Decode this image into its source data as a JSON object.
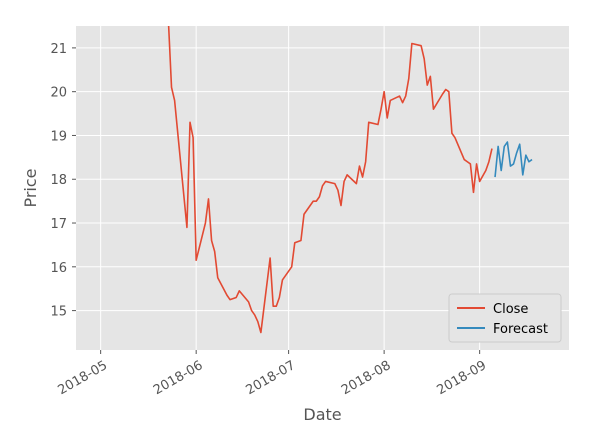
{
  "chart_data": {
    "type": "line",
    "title": "",
    "xlabel": "Date",
    "ylabel": "Price",
    "x_type": "date",
    "xlim": [
      "2018-04-23",
      "2018-09-30"
    ],
    "ylim": [
      14.1,
      21.5
    ],
    "x_ticks": [
      "2018-05-01",
      "2018-06-01",
      "2018-07-01",
      "2018-08-01",
      "2018-09-01"
    ],
    "x_tick_labels": [
      "2018-05",
      "2018-06",
      "2018-07",
      "2018-08",
      "2018-09"
    ],
    "y_ticks": [
      15,
      16,
      17,
      18,
      19,
      20,
      21
    ],
    "y_tick_labels": [
      "15",
      "16",
      "17",
      "18",
      "19",
      "20",
      "21"
    ],
    "grid": true,
    "legend_position": "lower-right",
    "series": [
      {
        "name": "Close",
        "color": "#e24a33",
        "points": [
          [
            "2018-05-23",
            21.6
          ],
          [
            "2018-05-24",
            20.1
          ],
          [
            "2018-05-25",
            19.8
          ],
          [
            "2018-05-29",
            16.9
          ],
          [
            "2018-05-30",
            19.3
          ],
          [
            "2018-05-31",
            18.95
          ],
          [
            "2018-06-01",
            16.15
          ],
          [
            "2018-06-04",
            17.0
          ],
          [
            "2018-06-05",
            17.55
          ],
          [
            "2018-06-06",
            16.6
          ],
          [
            "2018-06-07",
            16.35
          ],
          [
            "2018-06-08",
            15.75
          ],
          [
            "2018-06-11",
            15.35
          ],
          [
            "2018-06-12",
            15.25
          ],
          [
            "2018-06-14",
            15.3
          ],
          [
            "2018-06-15",
            15.45
          ],
          [
            "2018-06-18",
            15.2
          ],
          [
            "2018-06-19",
            15.0
          ],
          [
            "2018-06-20",
            14.9
          ],
          [
            "2018-06-21",
            14.75
          ],
          [
            "2018-06-22",
            14.5
          ],
          [
            "2018-06-25",
            16.2
          ],
          [
            "2018-06-26",
            15.1
          ],
          [
            "2018-06-27",
            15.1
          ],
          [
            "2018-06-28",
            15.3
          ],
          [
            "2018-06-29",
            15.7
          ],
          [
            "2018-07-02",
            16.0
          ],
          [
            "2018-07-03",
            16.55
          ],
          [
            "2018-07-05",
            16.6
          ],
          [
            "2018-07-06",
            17.2
          ],
          [
            "2018-07-09",
            17.5
          ],
          [
            "2018-07-10",
            17.5
          ],
          [
            "2018-07-11",
            17.6
          ],
          [
            "2018-07-12",
            17.85
          ],
          [
            "2018-07-13",
            17.95
          ],
          [
            "2018-07-16",
            17.9
          ],
          [
            "2018-07-17",
            17.75
          ],
          [
            "2018-07-18",
            17.4
          ],
          [
            "2018-07-19",
            17.95
          ],
          [
            "2018-07-20",
            18.1
          ],
          [
            "2018-07-23",
            17.9
          ],
          [
            "2018-07-24",
            18.3
          ],
          [
            "2018-07-25",
            18.05
          ],
          [
            "2018-07-26",
            18.4
          ],
          [
            "2018-07-27",
            19.3
          ],
          [
            "2018-07-30",
            19.25
          ],
          [
            "2018-07-31",
            19.6
          ],
          [
            "2018-08-01",
            20.0
          ],
          [
            "2018-08-02",
            19.4
          ],
          [
            "2018-08-03",
            19.8
          ],
          [
            "2018-08-06",
            19.9
          ],
          [
            "2018-08-07",
            19.75
          ],
          [
            "2018-08-08",
            19.9
          ],
          [
            "2018-08-09",
            20.3
          ],
          [
            "2018-08-10",
            21.1
          ],
          [
            "2018-08-13",
            21.05
          ],
          [
            "2018-08-14",
            20.75
          ],
          [
            "2018-08-15",
            20.15
          ],
          [
            "2018-08-16",
            20.35
          ],
          [
            "2018-08-17",
            19.6
          ],
          [
            "2018-08-20",
            19.95
          ],
          [
            "2018-08-21",
            20.05
          ],
          [
            "2018-08-22",
            20.0
          ],
          [
            "2018-08-23",
            19.05
          ],
          [
            "2018-08-24",
            18.95
          ],
          [
            "2018-08-27",
            18.45
          ],
          [
            "2018-08-28",
            18.4
          ],
          [
            "2018-08-29",
            18.35
          ],
          [
            "2018-08-30",
            17.7
          ],
          [
            "2018-08-31",
            18.35
          ],
          [
            "2018-09-01",
            17.95
          ],
          [
            "2018-09-03",
            18.2
          ],
          [
            "2018-09-04",
            18.4
          ],
          [
            "2018-09-05",
            18.7
          ]
        ]
      },
      {
        "name": "Forecast",
        "color": "#348abd",
        "points": [
          [
            "2018-09-06",
            18.05
          ],
          [
            "2018-09-07",
            18.75
          ],
          [
            "2018-09-08",
            18.2
          ],
          [
            "2018-09-09",
            18.75
          ],
          [
            "2018-09-10",
            18.85
          ],
          [
            "2018-09-11",
            18.3
          ],
          [
            "2018-09-12",
            18.35
          ],
          [
            "2018-09-13",
            18.6
          ],
          [
            "2018-09-14",
            18.8
          ],
          [
            "2018-09-15",
            18.1
          ],
          [
            "2018-09-16",
            18.55
          ],
          [
            "2018-09-17",
            18.4
          ],
          [
            "2018-09-18",
            18.45
          ]
        ]
      }
    ]
  }
}
